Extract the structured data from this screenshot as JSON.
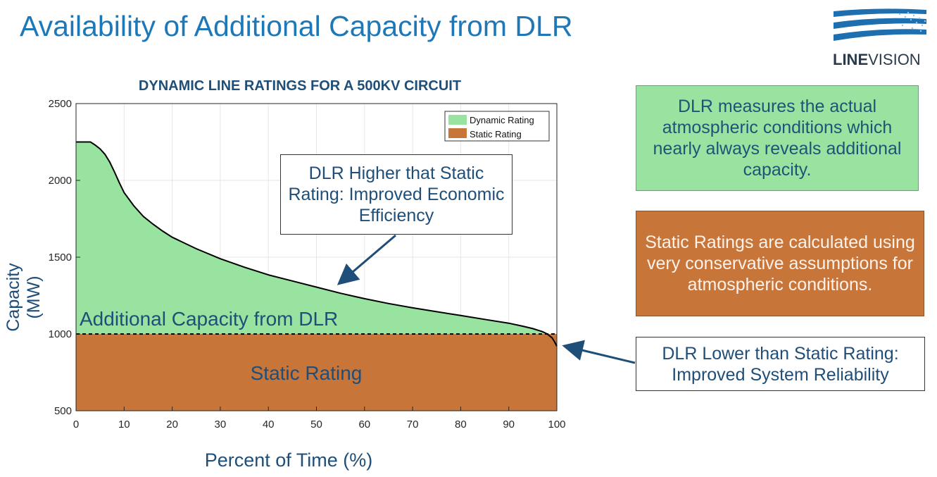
{
  "page": {
    "title": "Availability of Additional Capacity from DLR",
    "logo": {
      "bold": "LINE",
      "light": "VISION",
      "icon": "linevision-logo-icon"
    }
  },
  "chart_data": {
    "type": "area",
    "title": "DYNAMIC LINE RATINGS FOR A 500KV CIRCUIT",
    "xlabel": "Percent of Time (%)",
    "ylabel_line1": "Capacity",
    "ylabel_line2": "(MW)",
    "xlim": [
      0,
      100
    ],
    "ylim": [
      500,
      2500
    ],
    "xticks": [
      0,
      10,
      20,
      30,
      40,
      50,
      60,
      70,
      80,
      90,
      100
    ],
    "yticks": [
      500,
      1000,
      1500,
      2000,
      2500
    ],
    "grid": true,
    "legend_position": "top-right",
    "static_rating": 1000,
    "series": [
      {
        "name": "Dynamic Rating",
        "color": "#98e3a0",
        "x": [
          0,
          3,
          4,
          5,
          6,
          7,
          8,
          9,
          10,
          12,
          14,
          16,
          18,
          20,
          25,
          30,
          35,
          40,
          45,
          50,
          55,
          60,
          65,
          70,
          75,
          80,
          85,
          90,
          93,
          95,
          97,
          98,
          99,
          99.5,
          100
        ],
        "y": [
          2250,
          2250,
          2230,
          2205,
          2170,
          2120,
          2055,
          1985,
          1920,
          1835,
          1765,
          1715,
          1670,
          1630,
          1555,
          1490,
          1435,
          1385,
          1345,
          1305,
          1265,
          1230,
          1198,
          1170,
          1145,
          1120,
          1095,
          1070,
          1050,
          1035,
          1015,
          1000,
          975,
          950,
          920
        ]
      },
      {
        "name": "Static Rating",
        "color": "#c8753a"
      }
    ],
    "region_labels": {
      "additional": "Additional Capacity from DLR",
      "static": "Static Rating"
    }
  },
  "callouts": {
    "dlr_measures": "DLR measures the actual atmospheric conditions which nearly always reveals additional capacity.",
    "static_calc": "Static Ratings are calculated using very conservative assumptions for atmospheric conditions.",
    "dlr_higher": "DLR Higher that Static Rating: Improved Economic Efficiency",
    "dlr_lower": "DLR Lower than Static Rating: Improved System Reliability"
  },
  "colors": {
    "title_blue": "#1e78b8",
    "text_navy": "#1f4e79",
    "dynamic_green": "#98e3a0",
    "static_orange": "#c8753a",
    "arrow_navy": "#1f4e79"
  }
}
